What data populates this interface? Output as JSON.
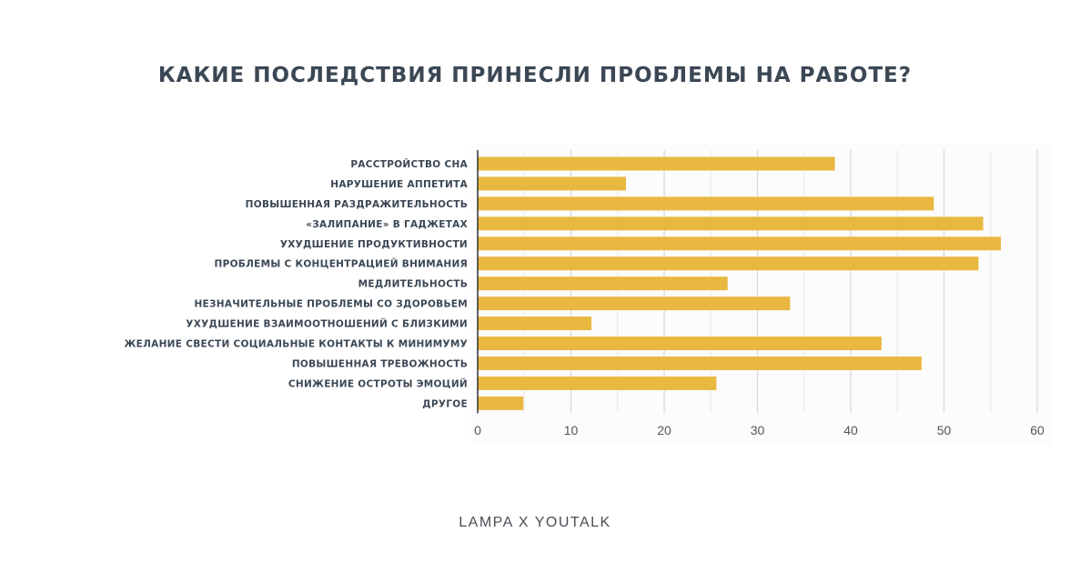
{
  "chart_data": {
    "type": "bar",
    "orientation": "horizontal",
    "title": "КАКИЕ ПОСЛЕДСТВИЯ ПРИНЕСЛИ ПРОБЛЕМЫ НА РАБОТЕ?",
    "xlabel": "",
    "ylabel": "",
    "xlim": [
      0,
      60
    ],
    "xticks": [
      0,
      10,
      20,
      30,
      40,
      50,
      60
    ],
    "grid": true,
    "categories": [
      "РАССТРОЙСТВО СНА",
      "НАРУШЕНИЕ АППЕТИТА",
      "ПОВЫШЕННАЯ РАЗДРАЖИТЕЛЬНОСТЬ",
      "«ЗАЛИПАНИЕ» В ГАДЖЕТАХ",
      "УХУДШЕНИЕ ПРОДУКТИВНОСТИ",
      "ПРОБЛЕМЫ С КОНЦЕНТРАЦИЕЙ ВНИМАНИЯ",
      "МЕДЛИТЕЛЬНОСТЬ",
      "НЕЗНАЧИТЕЛЬНЫЕ ПРОБЛЕМЫ СО ЗДОРОВЬЕМ",
      "УХУДШЕНИЕ ВЗАИМООТНОШЕНИЙ С БЛИЗКИМИ",
      "ЖЕЛАНИЕ СВЕСТИ СОЦИАЛЬНЫЕ КОНТАКТЫ К МИНИМУМУ",
      "ПОВЫШЕННАЯ ТРЕВОЖНОСТЬ",
      "СНИЖЕНИЕ ОСТРОТЫ ЭМОЦИЙ",
      "ДРУГОЕ"
    ],
    "values": [
      38.3,
      15.9,
      48.9,
      54.2,
      56.1,
      53.7,
      26.8,
      33.5,
      12.2,
      43.3,
      47.6,
      25.6,
      4.9
    ],
    "bar_color": "#E9B840"
  },
  "footer": "LAMPA X YOUTALK"
}
